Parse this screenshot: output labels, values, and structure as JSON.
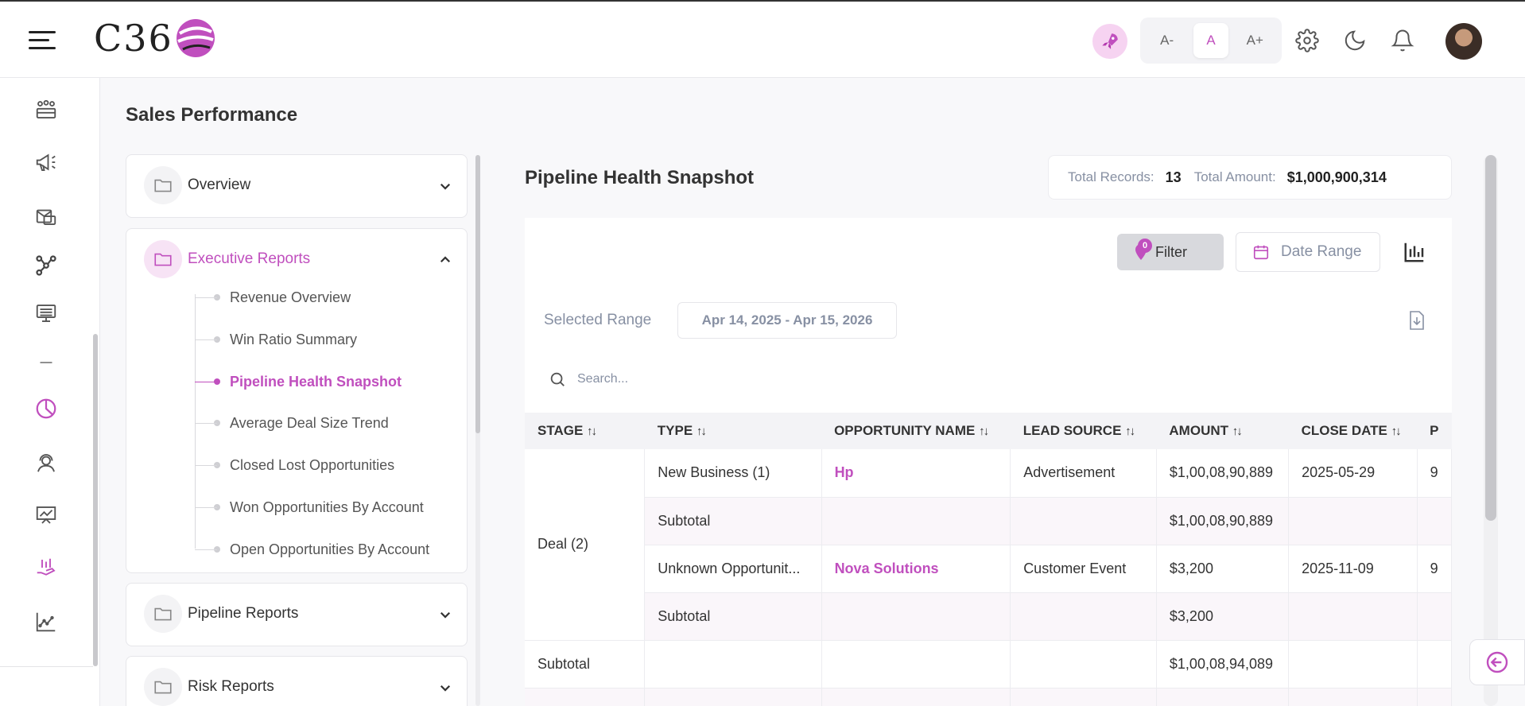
{
  "header": {
    "logo_text": "C36",
    "font_sizes": [
      "A-",
      "A",
      "A+"
    ],
    "active_font_size": "A",
    "accent": "#c04fbe"
  },
  "rail": {
    "icons": [
      "team-icon",
      "megaphone-icon",
      "mail-icon",
      "network-icon",
      "monitor-icon",
      "minus-icon",
      "pie-chart-icon",
      "support-agent-icon",
      "presentation-icon",
      "hand-chart-icon",
      "line-chart-icon"
    ]
  },
  "page": {
    "title": "Sales Performance"
  },
  "nav": {
    "sections": [
      {
        "label": "Overview"
      },
      {
        "label": "Executive Reports",
        "items": [
          "Revenue Overview",
          "Win Ratio Summary",
          "Pipeline Health Snapshot",
          "Average Deal Size Trend",
          "Closed Lost Opportunities",
          "Won Opportunities By Account",
          "Open Opportunities By Account"
        ],
        "active_item": "Pipeline Health Snapshot"
      },
      {
        "label": "Pipeline Reports"
      },
      {
        "label": "Risk Reports"
      }
    ]
  },
  "report": {
    "title": "Pipeline Health Snapshot",
    "total_records_label": "Total Records:",
    "total_records": "13",
    "total_amount_label": "Total Amount:",
    "total_amount": "$1,000,900,314",
    "filter_label": "Filter",
    "filter_count": "0",
    "date_range_label": "Date Range",
    "selected_range_label": "Selected Range",
    "selected_range": "Apr 14, 2025 - Apr 15, 2026",
    "search_placeholder": "Search...",
    "columns": [
      "STAGE",
      "TYPE",
      "OPPORTUNITY NAME",
      "LEAD SOURCE",
      "AMOUNT",
      "CLOSE DATE",
      "P"
    ],
    "rows": [
      {
        "type": "New Business (1)",
        "name": "Hp",
        "source": "Advertisement",
        "amount": "$1,00,08,90,889",
        "date": "2025-05-29",
        "extra": "9"
      },
      {
        "type": "Subtotal",
        "name": "",
        "source": "",
        "amount": "$1,00,08,90,889",
        "date": "",
        "extra": ""
      },
      {
        "type": "Unknown Opportunit...",
        "name": "Nova Solutions",
        "source": "Customer Event",
        "amount": "$3,200",
        "date": "2025-11-09",
        "extra": "9"
      },
      {
        "type": "Subtotal",
        "name": "",
        "source": "",
        "amount": "$3,200",
        "date": "",
        "extra": ""
      }
    ],
    "stage_group": "Deal (2)",
    "group_subtotal_label": "Subtotal",
    "group_subtotal_amount": "$1,00,08,94,089"
  }
}
